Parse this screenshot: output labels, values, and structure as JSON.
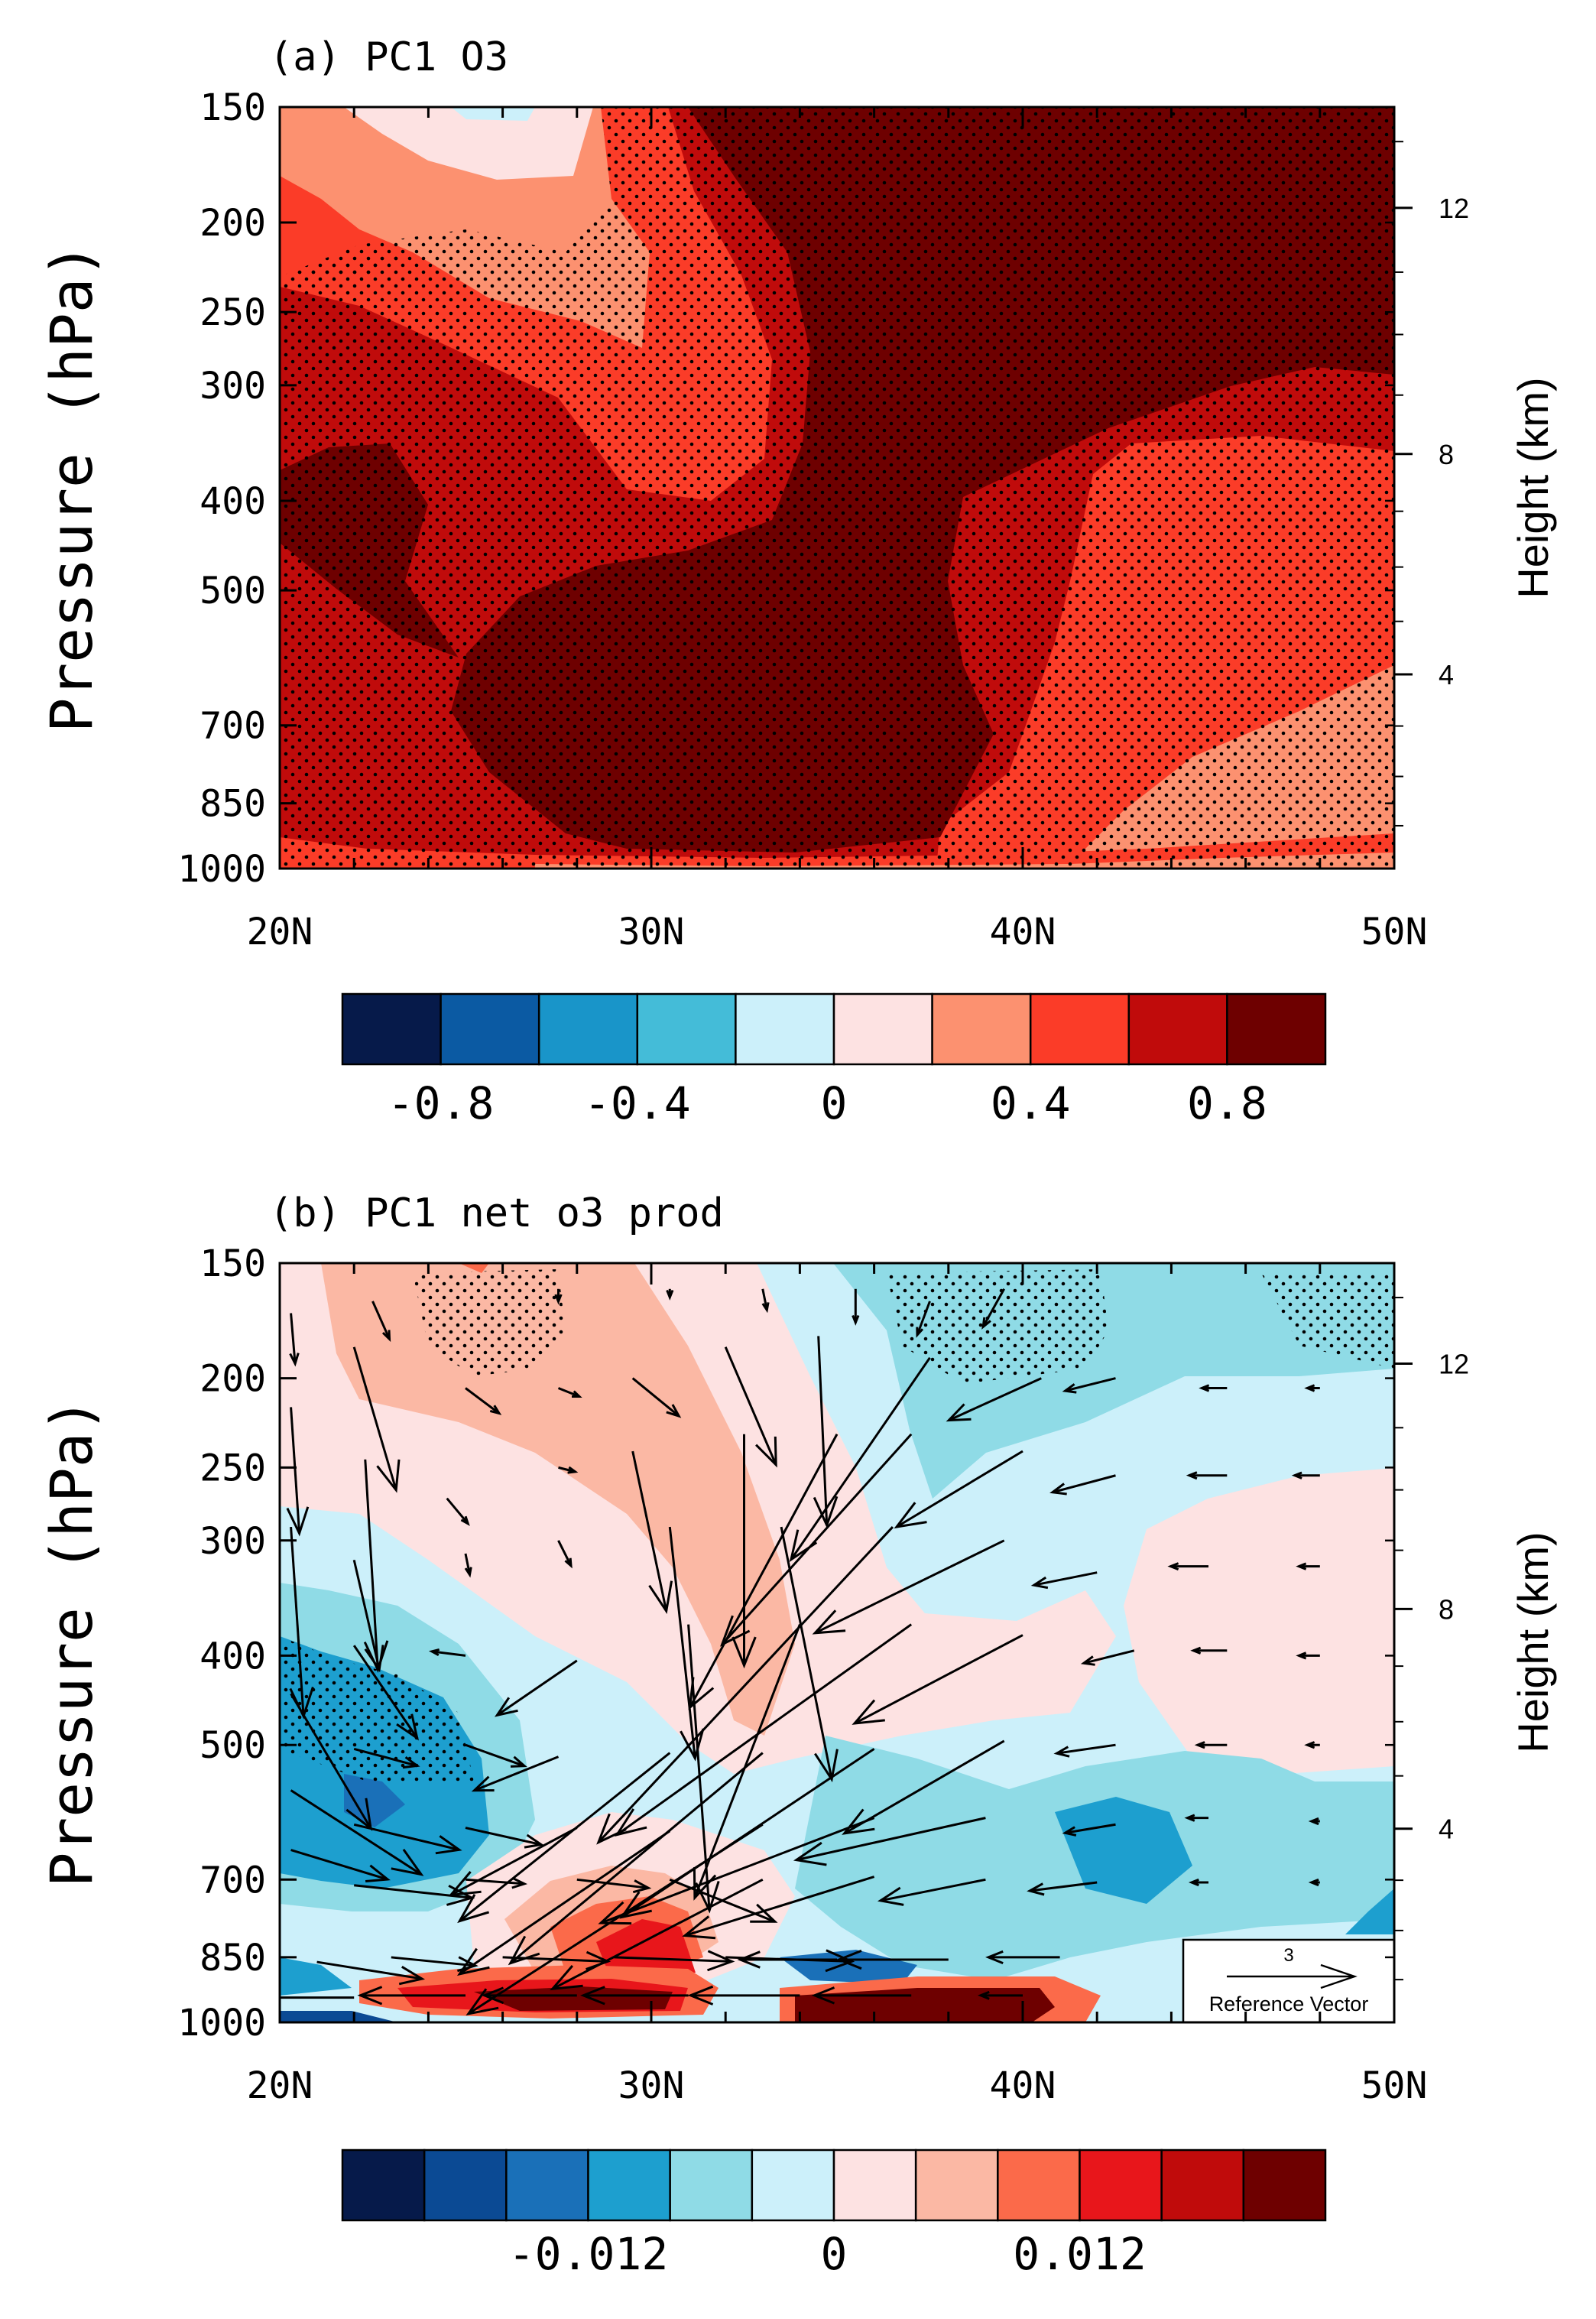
{
  "chart_data": [
    {
      "type": "heatmap",
      "panel": "a",
      "title": "(a) PC1 O3",
      "xlabel": "",
      "ylabel": "Pressure (hPa)",
      "y2label": "Height (km)",
      "x_ticks": [
        "20N",
        "30N",
        "40N",
        "50N"
      ],
      "x_tick_values": [
        20,
        30,
        40,
        50
      ],
      "xlim": [
        20,
        50
      ],
      "y_ticks": [
        "150",
        "200",
        "250",
        "300",
        "400",
        "500",
        "700",
        "850",
        "1000"
      ],
      "y_tick_values": [
        150,
        200,
        250,
        300,
        400,
        500,
        700,
        850,
        1000
      ],
      "ylim": [
        1000,
        150
      ],
      "y2_ticks": [
        "4",
        "8",
        "12"
      ],
      "y2_tick_values": [
        4,
        8,
        12
      ],
      "stippling": "significant regions dotted",
      "colorbar": {
        "colors": [
          "#061a4a",
          "#0b5aa3",
          "#1995c9",
          "#44bcd8",
          "#ccf0fa",
          "#fde2e2",
          "#fc9170",
          "#fb3c28",
          "#c00b0b",
          "#6e0000"
        ],
        "tick_labels": [
          "-0.8",
          "-0.4",
          "0",
          "0.4",
          "0.8"
        ],
        "tick_values": [
          -0.8,
          -0.4,
          0,
          0.4,
          0.8
        ],
        "level_min": -1.0,
        "level_max": 1.0
      }
    },
    {
      "type": "heatmap",
      "panel": "b",
      "title": "(b) PC1 net o3 prod",
      "xlabel": "",
      "ylabel": "Pressure (hPa)",
      "y2label": "Height (km)",
      "x_ticks": [
        "20N",
        "30N",
        "40N",
        "50N"
      ],
      "x_tick_values": [
        20,
        30,
        40,
        50
      ],
      "xlim": [
        20,
        50
      ],
      "y_ticks": [
        "150",
        "200",
        "250",
        "300",
        "400",
        "500",
        "700",
        "850",
        "1000"
      ],
      "y_tick_values": [
        150,
        200,
        250,
        300,
        400,
        500,
        700,
        850,
        1000
      ],
      "ylim": [
        1000,
        150
      ],
      "y2_ticks": [
        "4",
        "8",
        "12"
      ],
      "y2_tick_values": [
        4,
        8,
        12
      ],
      "overlay": "wind vectors",
      "reference_vector": {
        "magnitude": "3",
        "label": "Reference Vector"
      },
      "colorbar": {
        "colors": [
          "#061a4a",
          "#0b4a94",
          "#1a70b8",
          "#1d9fcf",
          "#8fdbe6",
          "#ccf0fa",
          "#fde2e2",
          "#fbb8a4",
          "#fb6a4a",
          "#e8161b",
          "#c00b0b",
          "#6e0000"
        ],
        "tick_labels": [
          "-0.012",
          "0",
          "0.012"
        ],
        "tick_values": [
          -0.012,
          0,
          0.012
        ],
        "level_min": -0.024,
        "level_max": 0.024
      },
      "vectors": [
        {
          "lat": 20.3,
          "p": 170,
          "u": 0.1,
          "v": -1.2
        },
        {
          "lat": 22.5,
          "p": 165,
          "u": 0.4,
          "v": -0.9
        },
        {
          "lat": 27.5,
          "p": 160,
          "u": 0.0,
          "v": -0.3
        },
        {
          "lat": 30.5,
          "p": 160,
          "u": 0.0,
          "v": -0.2
        },
        {
          "lat": 33.0,
          "p": 160,
          "u": 0.1,
          "v": -0.5
        },
        {
          "lat": 35.5,
          "p": 160,
          "u": 0.0,
          "v": -0.8
        },
        {
          "lat": 37.5,
          "p": 165,
          "u": -0.3,
          "v": -0.8
        },
        {
          "lat": 39.5,
          "p": 160,
          "u": -0.5,
          "v": -0.9
        },
        {
          "lat": 20.3,
          "p": 215,
          "u": 0.2,
          "v": -3.0
        },
        {
          "lat": 22.0,
          "p": 185,
          "u": 1.0,
          "v": -3.4
        },
        {
          "lat": 25.0,
          "p": 205,
          "u": 0.8,
          "v": -0.6
        },
        {
          "lat": 27.5,
          "p": 205,
          "u": 0.5,
          "v": -0.2
        },
        {
          "lat": 29.5,
          "p": 200,
          "u": 1.1,
          "v": -0.9
        },
        {
          "lat": 32.0,
          "p": 185,
          "u": 1.2,
          "v": -2.8
        },
        {
          "lat": 34.5,
          "p": 180,
          "u": 0.2,
          "v": -4.5
        },
        {
          "lat": 37.5,
          "p": 190,
          "u": -3.3,
          "v": -4.8
        },
        {
          "lat": 40.5,
          "p": 200,
          "u": -2.2,
          "v": -1.0
        },
        {
          "lat": 42.5,
          "p": 200,
          "u": -1.2,
          "v": -0.3
        },
        {
          "lat": 45.5,
          "p": 205,
          "u": -0.6,
          "v": 0.0
        },
        {
          "lat": 48.0,
          "p": 205,
          "u": -0.3,
          "v": 0.0
        },
        {
          "lat": 20.3,
          "p": 290,
          "u": 0.3,
          "v": -4.5
        },
        {
          "lat": 22.3,
          "p": 245,
          "u": 0.3,
          "v": -5.0
        },
        {
          "lat": 24.5,
          "p": 270,
          "u": 0.5,
          "v": -0.6
        },
        {
          "lat": 27.5,
          "p": 250,
          "u": 0.4,
          "v": -0.1
        },
        {
          "lat": 29.5,
          "p": 240,
          "u": 0.8,
          "v": -3.8
        },
        {
          "lat": 32.5,
          "p": 230,
          "u": 0.0,
          "v": -5.5
        },
        {
          "lat": 35.0,
          "p": 230,
          "u": -3.5,
          "v": -6.5
        },
        {
          "lat": 37.0,
          "p": 230,
          "u": -4.5,
          "v": -5.0
        },
        {
          "lat": 40.0,
          "p": 240,
          "u": -3.0,
          "v": -1.8
        },
        {
          "lat": 42.5,
          "p": 255,
          "u": -1.5,
          "v": -0.4
        },
        {
          "lat": 45.5,
          "p": 255,
          "u": -0.9,
          "v": 0.0
        },
        {
          "lat": 48.0,
          "p": 255,
          "u": -0.6,
          "v": 0.0
        },
        {
          "lat": 22.0,
          "p": 315,
          "u": 0.6,
          "v": -2.6
        },
        {
          "lat": 25.0,
          "p": 310,
          "u": 0.1,
          "v": -0.5
        },
        {
          "lat": 27.5,
          "p": 300,
          "u": 0.3,
          "v": -0.6
        },
        {
          "lat": 30.5,
          "p": 290,
          "u": 0.6,
          "v": -5.5
        },
        {
          "lat": 33.5,
          "p": 290,
          "u": 1.2,
          "v": -6.0
        },
        {
          "lat": 36.5,
          "p": 290,
          "u": -7.0,
          "v": -7.5
        },
        {
          "lat": 39.5,
          "p": 300,
          "u": -4.5,
          "v": -2.2
        },
        {
          "lat": 42.0,
          "p": 325,
          "u": -1.5,
          "v": -0.3
        },
        {
          "lat": 45.0,
          "p": 320,
          "u": -0.9,
          "v": 0.0
        },
        {
          "lat": 48.0,
          "p": 320,
          "u": -0.5,
          "v": 0.0
        },
        {
          "lat": 20.3,
          "p": 440,
          "u": 1.9,
          "v": -3.2
        },
        {
          "lat": 22.0,
          "p": 390,
          "u": 1.5,
          "v": -2.2
        },
        {
          "lat": 25.0,
          "p": 400,
          "u": -0.8,
          "v": 0.1
        },
        {
          "lat": 28.0,
          "p": 405,
          "u": -1.9,
          "v": -1.3
        },
        {
          "lat": 31.0,
          "p": 370,
          "u": 0.5,
          "v": -6.8
        },
        {
          "lat": 34.0,
          "p": 370,
          "u": -2.5,
          "v": -6.5
        },
        {
          "lat": 37.0,
          "p": 370,
          "u": -7.0,
          "v": -5.0
        },
        {
          "lat": 40.0,
          "p": 380,
          "u": -4.0,
          "v": -2.1
        },
        {
          "lat": 43.0,
          "p": 395,
          "u": -1.2,
          "v": -0.3
        },
        {
          "lat": 45.5,
          "p": 395,
          "u": -0.8,
          "v": 0.0
        },
        {
          "lat": 48.0,
          "p": 400,
          "u": -0.5,
          "v": 0.0
        },
        {
          "lat": 20.3,
          "p": 560,
          "u": 3.1,
          "v": -2.0
        },
        {
          "lat": 22.0,
          "p": 505,
          "u": 1.5,
          "v": -0.4
        },
        {
          "lat": 25.0,
          "p": 500,
          "u": 1.4,
          "v": -0.5
        },
        {
          "lat": 27.5,
          "p": 515,
          "u": -2.0,
          "v": -0.8
        },
        {
          "lat": 30.5,
          "p": 510,
          "u": -5.0,
          "v": -4.0
        },
        {
          "lat": 33.0,
          "p": 510,
          "u": -6.0,
          "v": -5.0
        },
        {
          "lat": 36.0,
          "p": 505,
          "u": -6.0,
          "v": -4.0
        },
        {
          "lat": 39.5,
          "p": 495,
          "u": -3.8,
          "v": -2.2
        },
        {
          "lat": 42.5,
          "p": 500,
          "u": -1.4,
          "v": -0.2
        },
        {
          "lat": 45.5,
          "p": 500,
          "u": -0.7,
          "v": 0.0
        },
        {
          "lat": 48.0,
          "p": 500,
          "u": -0.3,
          "v": 0.0
        },
        {
          "lat": 20.3,
          "p": 650,
          "u": 2.3,
          "v": -0.7
        },
        {
          "lat": 22.0,
          "p": 610,
          "u": 2.5,
          "v": -0.6
        },
        {
          "lat": 25.0,
          "p": 615,
          "u": 1.8,
          "v": -0.4
        },
        {
          "lat": 28.0,
          "p": 615,
          "u": -3.0,
          "v": -1.6
        },
        {
          "lat": 30.5,
          "p": 620,
          "u": -5.0,
          "v": -3.4
        },
        {
          "lat": 33.0,
          "p": 610,
          "u": -7.0,
          "v": -4.5
        },
        {
          "lat": 36.0,
          "p": 600,
          "u": -6.5,
          "v": -2.5
        },
        {
          "lat": 39.0,
          "p": 600,
          "u": -4.5,
          "v": -1.0
        },
        {
          "lat": 42.5,
          "p": 610,
          "u": -1.2,
          "v": -0.2
        },
        {
          "lat": 45.0,
          "p": 600,
          "u": -0.5,
          "v": 0.0
        },
        {
          "lat": 48.0,
          "p": 605,
          "u": -0.2,
          "v": 0.0
        },
        {
          "lat": 22.0,
          "p": 710,
          "u": 2.8,
          "v": -0.3
        },
        {
          "lat": 25.0,
          "p": 700,
          "u": 1.4,
          "v": -0.1
        },
        {
          "lat": 28.0,
          "p": 700,
          "u": 1.7,
          "v": -0.2
        },
        {
          "lat": 30.5,
          "p": 700,
          "u": 2.5,
          "v": -1.0
        },
        {
          "lat": 33.0,
          "p": 700,
          "u": -5.0,
          "v": -2.6
        },
        {
          "lat": 36.0,
          "p": 695,
          "u": -4.5,
          "v": -1.4
        },
        {
          "lat": 39.0,
          "p": 700,
          "u": -2.5,
          "v": -0.5
        },
        {
          "lat": 42.0,
          "p": 705,
          "u": -1.6,
          "v": -0.2
        },
        {
          "lat": 45.0,
          "p": 705,
          "u": -0.4,
          "v": 0.0
        },
        {
          "lat": 48.0,
          "p": 705,
          "u": -0.2,
          "v": 0.0
        },
        {
          "lat": 21.0,
          "p": 860,
          "u": 2.5,
          "v": -0.4
        },
        {
          "lat": 23.0,
          "p": 850,
          "u": 2.0,
          "v": -0.2
        },
        {
          "lat": 26.0,
          "p": 850,
          "u": 2.5,
          "v": -0.1
        },
        {
          "lat": 29.0,
          "p": 850,
          "u": 2.8,
          "v": -0.1
        },
        {
          "lat": 32.0,
          "p": 850,
          "u": 3.0,
          "v": -0.1
        },
        {
          "lat": 35.0,
          "p": 855,
          "u": -2.3,
          "v": 0.0
        },
        {
          "lat": 38.0,
          "p": 855,
          "u": -2.6,
          "v": 0.0
        },
        {
          "lat": 41.0,
          "p": 850,
          "u": -1.7,
          "v": 0.0
        },
        {
          "lat": 22.0,
          "p": 940,
          "u": -2.7,
          "v": 0.0
        },
        {
          "lat": 25.0,
          "p": 935,
          "u": -2.5,
          "v": 0.0
        },
        {
          "lat": 28.0,
          "p": 935,
          "u": -2.2,
          "v": 0.0
        },
        {
          "lat": 31.0,
          "p": 935,
          "u": -2.5,
          "v": 0.0
        },
        {
          "lat": 34.0,
          "p": 935,
          "u": -2.6,
          "v": 0.0
        },
        {
          "lat": 37.0,
          "p": 935,
          "u": -2.3,
          "v": 0.0
        },
        {
          "lat": 40.0,
          "p": 935,
          "u": -1.0,
          "v": 0.0
        }
      ]
    }
  ]
}
